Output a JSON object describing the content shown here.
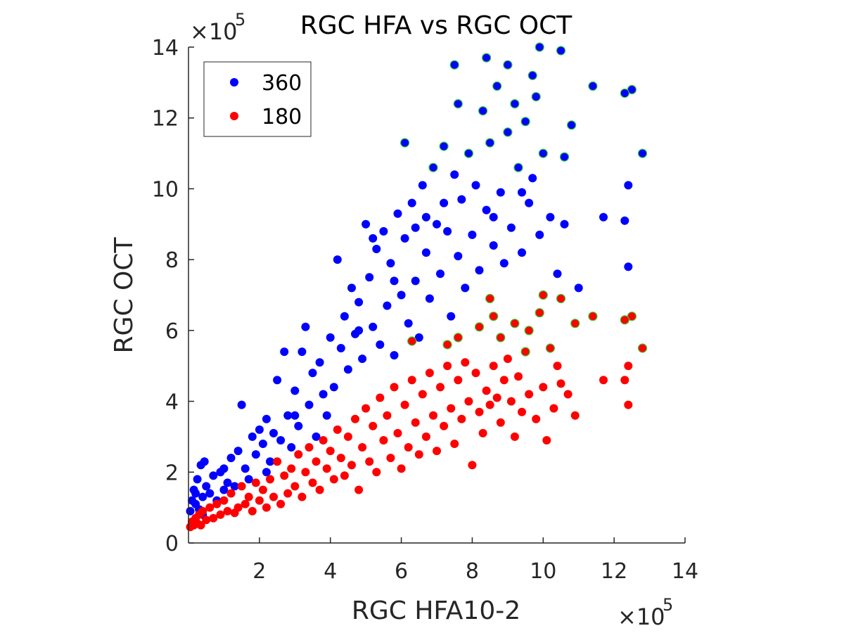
{
  "chart_data": {
    "type": "scatter",
    "title": "RGC HFA vs RGC OCT",
    "xlabel": "RGC HFA10-2",
    "ylabel": "RGC OCT",
    "x_multiplier": "×10",
    "x_exponent": "5",
    "y_multiplier": "×10",
    "y_exponent": "5",
    "xlim": [
      0,
      14
    ],
    "ylim": [
      0,
      14
    ],
    "xticks": [
      2,
      4,
      6,
      8,
      10,
      12,
      14
    ],
    "yticks": [
      0,
      2,
      4,
      6,
      8,
      10,
      12,
      14
    ],
    "grid": false,
    "legend_position": "top-left",
    "colors": {
      "series_360": "#0000ff",
      "series_180": "#ff0000",
      "highlight_edge": "#33cc33",
      "axis": "#262626"
    },
    "series": [
      {
        "name": "360",
        "color": "#0000ff",
        "points": [
          [
            0.05,
            0.9
          ],
          [
            0.1,
            1.2
          ],
          [
            0.15,
            1.5
          ],
          [
            0.2,
            1.1
          ],
          [
            0.25,
            1.8
          ],
          [
            0.3,
            0.95
          ],
          [
            0.35,
            2.2
          ],
          [
            0.4,
            1.3
          ],
          [
            0.45,
            2.3
          ],
          [
            0.5,
            1.6
          ],
          [
            0.6,
            1.4
          ],
          [
            0.7,
            1.9
          ],
          [
            0.8,
            1.2
          ],
          [
            0.9,
            2.0
          ],
          [
            1.0,
            1.5
          ],
          [
            1.1,
            1.7
          ],
          [
            1.2,
            2.4
          ],
          [
            1.3,
            1.6
          ],
          [
            1.4,
            2.6
          ],
          [
            1.5,
            3.9
          ],
          [
            1.6,
            2.1
          ],
          [
            1.7,
            1.8
          ],
          [
            1.8,
            3.0
          ],
          [
            1.9,
            2.5
          ],
          [
            2.0,
            3.2
          ],
          [
            2.1,
            2.8
          ],
          [
            2.2,
            3.5
          ],
          [
            2.3,
            2.3
          ],
          [
            2.4,
            3.1
          ],
          [
            2.5,
            4.6
          ],
          [
            2.6,
            2.9
          ],
          [
            2.7,
            5.4
          ],
          [
            2.8,
            3.6
          ],
          [
            2.9,
            2.7
          ],
          [
            3.0,
            4.3
          ],
          [
            3.1,
            3.3
          ],
          [
            3.2,
            5.4
          ],
          [
            3.3,
            6.1
          ],
          [
            3.4,
            3.9
          ],
          [
            3.5,
            4.8
          ],
          [
            3.6,
            3.0
          ],
          [
            3.7,
            5.1
          ],
          [
            3.8,
            4.2
          ],
          [
            3.9,
            3.6
          ],
          [
            4.0,
            5.8
          ],
          [
            4.1,
            4.4
          ],
          [
            4.2,
            8.0
          ],
          [
            4.3,
            5.5
          ],
          [
            4.4,
            6.4
          ],
          [
            4.5,
            4.9
          ],
          [
            4.6,
            7.2
          ],
          [
            4.7,
            5.9
          ],
          [
            4.8,
            6.8
          ],
          [
            4.9,
            5.2
          ],
          [
            5.0,
            9.0
          ],
          [
            5.1,
            7.5
          ],
          [
            5.2,
            6.1
          ],
          [
            5.3,
            8.3
          ],
          [
            5.4,
            5.6
          ],
          [
            5.5,
            8.8
          ],
          [
            5.6,
            6.7
          ],
          [
            5.7,
            7.9
          ],
          [
            5.8,
            5.3
          ],
          [
            5.9,
            9.3
          ],
          [
            6.0,
            7.0
          ],
          [
            6.1,
            8.6
          ],
          [
            6.2,
            6.2
          ],
          [
            6.3,
            9.6
          ],
          [
            6.4,
            7.4
          ],
          [
            6.5,
            5.8
          ],
          [
            6.6,
            10.1
          ],
          [
            6.7,
            8.2
          ],
          [
            6.8,
            6.9
          ],
          [
            6.9,
            10.6
          ],
          [
            7.0,
            9.0
          ],
          [
            7.1,
            7.6
          ],
          [
            7.2,
            11.2
          ],
          [
            7.3,
            8.8
          ],
          [
            7.4,
            6.4
          ],
          [
            7.5,
            10.4
          ],
          [
            7.6,
            8.1
          ],
          [
            7.7,
            9.7
          ],
          [
            7.8,
            7.2
          ],
          [
            7.9,
            11.0
          ],
          [
            8.0,
            8.7
          ],
          [
            8.1,
            10.1
          ],
          [
            8.2,
            7.7
          ],
          [
            8.3,
            12.2
          ],
          [
            8.4,
            9.4
          ],
          [
            8.5,
            11.3
          ],
          [
            8.6,
            8.4
          ],
          [
            8.7,
            12.9
          ],
          [
            8.8,
            9.9
          ],
          [
            8.9,
            7.9
          ],
          [
            9.0,
            11.6
          ],
          [
            9.1,
            8.9
          ],
          [
            9.2,
            12.4
          ],
          [
            9.3,
            10.6
          ],
          [
            9.4,
            8.2
          ],
          [
            9.5,
            11.9
          ],
          [
            9.6,
            9.6
          ],
          [
            9.7,
            10.3
          ],
          [
            9.8,
            12.6
          ],
          [
            9.9,
            8.7
          ],
          [
            10.0,
            11.0
          ],
          [
            10.2,
            9.2
          ],
          [
            10.4,
            7.6
          ],
          [
            10.6,
            9.0
          ],
          [
            10.8,
            11.8
          ],
          [
            11.0,
            7.2
          ],
          [
            11.7,
            9.2
          ],
          [
            12.3,
            9.1
          ],
          [
            12.4,
            10.1
          ],
          [
            12.4,
            7.8
          ],
          [
            12.5,
            12.8
          ],
          [
            12.8,
            11.0
          ],
          [
            6.1,
            11.3
          ],
          [
            7.6,
            12.4
          ],
          [
            8.4,
            13.7
          ],
          [
            9.9,
            14.0
          ],
          [
            10.5,
            13.9
          ],
          [
            11.4,
            12.9
          ],
          [
            12.3,
            12.7
          ],
          [
            7.5,
            13.5
          ],
          [
            9.0,
            13.5
          ],
          [
            9.7,
            13.2
          ],
          [
            6.7,
            9.2
          ],
          [
            5.2,
            8.6
          ],
          [
            4.8,
            6.0
          ],
          [
            3.0,
            3.6
          ],
          [
            2.2,
            2.0
          ],
          [
            1.0,
            2.1
          ],
          [
            0.4,
            0.8
          ],
          [
            0.2,
            1.4
          ],
          [
            5.8,
            7.4
          ],
          [
            6.4,
            8.9
          ],
          [
            7.2,
            9.6
          ],
          [
            8.6,
            9.2
          ],
          [
            9.4,
            9.9
          ],
          [
            10.6,
            10.9
          ]
        ]
      },
      {
        "name": "180",
        "color": "#ff0000",
        "points": [
          [
            0.05,
            0.45
          ],
          [
            0.1,
            0.6
          ],
          [
            0.15,
            0.5
          ],
          [
            0.2,
            0.7
          ],
          [
            0.25,
            0.55
          ],
          [
            0.3,
            0.8
          ],
          [
            0.35,
            0.5
          ],
          [
            0.4,
            0.9
          ],
          [
            0.5,
            0.65
          ],
          [
            0.6,
            1.0
          ],
          [
            0.7,
            0.7
          ],
          [
            0.8,
            1.1
          ],
          [
            0.9,
            0.8
          ],
          [
            1.0,
            1.2
          ],
          [
            1.1,
            0.9
          ],
          [
            1.2,
            1.4
          ],
          [
            1.3,
            0.85
          ],
          [
            1.4,
            1.0
          ],
          [
            1.5,
            1.6
          ],
          [
            1.6,
            1.1
          ],
          [
            1.7,
            1.3
          ],
          [
            1.8,
            0.9
          ],
          [
            1.9,
            1.7
          ],
          [
            2.0,
            1.2
          ],
          [
            2.1,
            1.5
          ],
          [
            2.2,
            1.0
          ],
          [
            2.3,
            1.8
          ],
          [
            2.4,
            1.3
          ],
          [
            2.5,
            2.3
          ],
          [
            2.6,
            1.1
          ],
          [
            2.7,
            1.9
          ],
          [
            2.8,
            1.4
          ],
          [
            2.9,
            2.1
          ],
          [
            3.0,
            1.6
          ],
          [
            3.1,
            2.5
          ],
          [
            3.2,
            1.3
          ],
          [
            3.3,
            2.0
          ],
          [
            3.4,
            2.7
          ],
          [
            3.5,
            1.7
          ],
          [
            3.6,
            2.3
          ],
          [
            3.7,
            1.5
          ],
          [
            3.8,
            2.9
          ],
          [
            3.9,
            2.1
          ],
          [
            4.0,
            2.6
          ],
          [
            4.1,
            1.8
          ],
          [
            4.2,
            3.2
          ],
          [
            4.3,
            2.4
          ],
          [
            4.4,
            1.9
          ],
          [
            4.5,
            3.0
          ],
          [
            4.6,
            2.2
          ],
          [
            4.7,
            3.5
          ],
          [
            4.8,
            1.5
          ],
          [
            4.9,
            2.7
          ],
          [
            5.0,
            3.8
          ],
          [
            5.1,
            2.3
          ],
          [
            5.2,
            3.3
          ],
          [
            5.3,
            2.0
          ],
          [
            5.4,
            4.1
          ],
          [
            5.5,
            2.9
          ],
          [
            5.6,
            3.6
          ],
          [
            5.7,
            2.4
          ],
          [
            5.8,
            4.4
          ],
          [
            5.9,
            3.1
          ],
          [
            6.0,
            2.1
          ],
          [
            6.1,
            3.9
          ],
          [
            6.2,
            2.7
          ],
          [
            6.3,
            4.6
          ],
          [
            6.4,
            3.4
          ],
          [
            6.5,
            2.5
          ],
          [
            6.6,
            4.2
          ],
          [
            6.7,
            3.0
          ],
          [
            6.8,
            4.8
          ],
          [
            6.9,
            3.6
          ],
          [
            7.0,
            2.6
          ],
          [
            7.1,
            4.4
          ],
          [
            7.2,
            3.3
          ],
          [
            7.3,
            5.0
          ],
          [
            7.4,
            3.8
          ],
          [
            7.5,
            2.8
          ],
          [
            7.6,
            4.6
          ],
          [
            7.7,
            3.5
          ],
          [
            7.8,
            5.1
          ],
          [
            7.9,
            4.0
          ],
          [
            8.0,
            2.2
          ],
          [
            8.1,
            4.8
          ],
          [
            8.2,
            3.7
          ],
          [
            8.3,
            3.1
          ],
          [
            8.4,
            4.3
          ],
          [
            8.5,
            3.9
          ],
          [
            8.6,
            5.0
          ],
          [
            8.7,
            4.1
          ],
          [
            8.8,
            3.4
          ],
          [
            8.9,
            4.6
          ],
          [
            9.0,
            5.2
          ],
          [
            9.1,
            4.0
          ],
          [
            9.2,
            3.0
          ],
          [
            9.3,
            4.7
          ],
          [
            9.4,
            3.7
          ],
          [
            9.6,
            4.2
          ],
          [
            9.8,
            3.5
          ],
          [
            10.0,
            4.4
          ],
          [
            10.1,
            2.9
          ],
          [
            10.3,
            3.8
          ],
          [
            10.5,
            4.5
          ],
          [
            10.7,
            4.2
          ],
          [
            10.9,
            3.6
          ],
          [
            11.7,
            4.6
          ],
          [
            12.3,
            4.6
          ],
          [
            12.4,
            3.9
          ],
          [
            12.4,
            5.0
          ],
          [
            12.5,
            6.4
          ],
          [
            12.8,
            5.5
          ],
          [
            12.3,
            6.3
          ],
          [
            11.4,
            6.4
          ],
          [
            10.9,
            6.2
          ],
          [
            10.5,
            6.9
          ],
          [
            10.0,
            7.0
          ],
          [
            10.2,
            5.5
          ],
          [
            9.6,
            6.0
          ],
          [
            9.2,
            6.2
          ],
          [
            8.5,
            6.9
          ],
          [
            8.8,
            5.8
          ],
          [
            8.2,
            6.1
          ],
          [
            7.6,
            5.8
          ],
          [
            7.3,
            5.6
          ],
          [
            6.3,
            5.7
          ],
          [
            9.5,
            5.4
          ],
          [
            9.9,
            6.5
          ],
          [
            8.6,
            6.4
          ],
          [
            10.4,
            5.0
          ]
        ]
      }
    ]
  }
}
